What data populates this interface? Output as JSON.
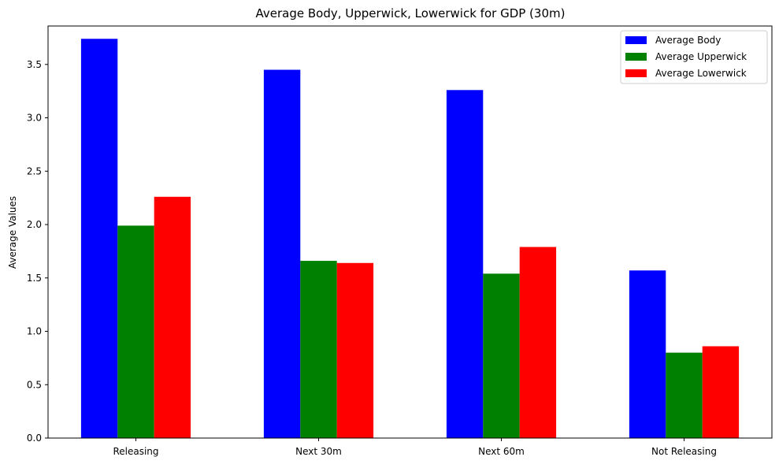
{
  "chart_data": {
    "type": "bar",
    "title": "Average Body, Upperwick, Lowerwick for GDP (30m)",
    "xlabel": "",
    "ylabel": "Average Values",
    "categories": [
      "Releasing",
      "Next 30m",
      "Next 60m",
      "Not Releasing"
    ],
    "series": [
      {
        "name": "Average Body",
        "color": "#0000ff",
        "values": [
          3.74,
          3.45,
          3.26,
          1.57
        ]
      },
      {
        "name": "Average Upperwick",
        "color": "#008000",
        "values": [
          1.99,
          1.66,
          1.54,
          0.8
        ]
      },
      {
        "name": "Average Lowerwick",
        "color": "#ff0000",
        "values": [
          2.26,
          1.64,
          1.79,
          0.86
        ]
      }
    ],
    "ylim": [
      0,
      3.86
    ],
    "yticks": [
      0.0,
      0.5,
      1.0,
      1.5,
      2.0,
      2.5,
      3.0,
      3.5
    ],
    "ytick_labels": [
      "0.0",
      "0.5",
      "1.0",
      "1.5",
      "2.0",
      "2.5",
      "3.0",
      "3.5"
    ],
    "grid": false,
    "legend_position": "top-right"
  }
}
